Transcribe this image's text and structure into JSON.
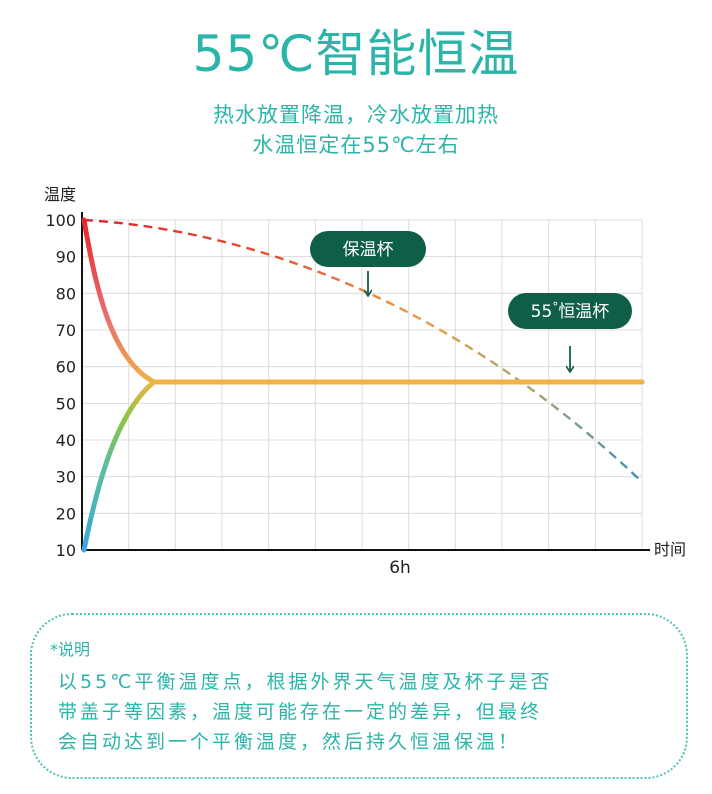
{
  "header": {
    "title": "55℃智能恒温",
    "subtitle_line1": "热水放置降温，冷水放置加热",
    "subtitle_line2": "水温恒定在55℃左右"
  },
  "chart_data": {
    "type": "line",
    "ylabel": "温度",
    "xlabel": "时间",
    "y_ticks": [
      100,
      90,
      80,
      70,
      60,
      50,
      40,
      30,
      20,
      10
    ],
    "x_tick_label": "6h",
    "annotations": {
      "thermos_cup": "保温杯",
      "constant_cup_prefix": "55",
      "constant_cup_degree": "°",
      "constant_cup_suffix": "恒温杯"
    },
    "colors": {
      "hot_red": "#e8262e",
      "warm_orange": "#f0b347",
      "cool_green": "#7dbf4a",
      "cold_blue": "#3ea6d8",
      "pill_green": "#0f5f48",
      "grid": "#dcdcdc"
    }
  },
  "note": {
    "label": "*说明",
    "line1": "以55℃平衡温度点，根据外界天气温度及杯子是否",
    "line2": "带盖子等因素，温度可能存在一定的差异，但最终",
    "line3": "会自动达到一个平衡温度，然后持久恒温保温！"
  }
}
